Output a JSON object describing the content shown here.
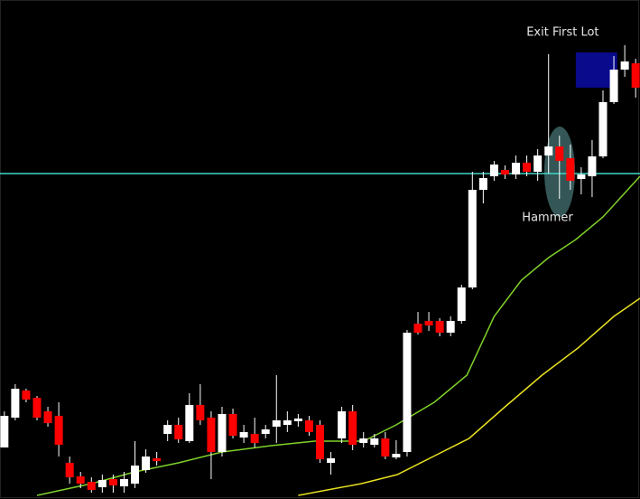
{
  "chart_data": {
    "type": "candlestick",
    "x": [
      1,
      2,
      3,
      4,
      5,
      6,
      7,
      8,
      9,
      10,
      11,
      12,
      13,
      14,
      15,
      16,
      17,
      18,
      19,
      20,
      21,
      22,
      23,
      24,
      25,
      26,
      27,
      28,
      29,
      30,
      31,
      32,
      33,
      34,
      35,
      36,
      37,
      38,
      39,
      40,
      41,
      42,
      43,
      44,
      45,
      46,
      47,
      48,
      49,
      50,
      51,
      52,
      53,
      54,
      55,
      56,
      57,
      58,
      59
    ],
    "open": [
      57,
      90,
      120,
      112,
      97,
      92,
      40,
      25,
      19,
      13,
      22,
      14,
      17,
      32,
      45,
      72,
      82,
      64,
      104,
      90,
      52,
      94,
      68,
      72,
      72,
      80,
      82,
      86,
      87,
      82,
      40,
      67,
      97,
      62,
      60,
      67,
      46,
      52,
      194,
      197,
      197,
      184,
      197,
      234,
      342,
      357,
      364,
      359,
      372,
      362,
      380,
      390,
      377,
      354,
      357,
      379,
      439,
      475,
      482
    ],
    "high": [
      97,
      127,
      122,
      114,
      102,
      107,
      47,
      30,
      24,
      27,
      27,
      30,
      64,
      55,
      52,
      87,
      90,
      117,
      127,
      97,
      102,
      100,
      82,
      90,
      82,
      137,
      97,
      94,
      92,
      87,
      52,
      102,
      104,
      74,
      72,
      74,
      65,
      187,
      207,
      207,
      200,
      202,
      237,
      362,
      362,
      374,
      369,
      380,
      380,
      387,
      492,
      402,
      392,
      367,
      397,
      452,
      490,
      502,
      487
    ],
    "low": [
      57,
      87,
      107,
      87,
      80,
      47,
      17,
      12,
      7,
      7,
      7,
      7,
      12,
      29,
      37,
      64,
      62,
      62,
      82,
      22,
      47,
      67,
      62,
      57,
      67,
      62,
      74,
      80,
      70,
      40,
      27,
      62,
      54,
      57,
      57,
      44,
      44,
      47,
      182,
      186,
      180,
      180,
      194,
      232,
      327,
      352,
      354,
      354,
      357,
      352,
      360,
      332,
      342,
      337,
      334,
      377,
      437,
      467,
      444
    ],
    "close": [
      92,
      122,
      110,
      90,
      84,
      60,
      24,
      17,
      10,
      21,
      15,
      22,
      37,
      47,
      42,
      82,
      66,
      104,
      87,
      52,
      94,
      70,
      74,
      62,
      77,
      87,
      87,
      89,
      74,
      44,
      45,
      97,
      60,
      67,
      67,
      47,
      50,
      184,
      184,
      192,
      184,
      197,
      234,
      342,
      355,
      370,
      359,
      372,
      362,
      380,
      390,
      374,
      352,
      359,
      379,
      439,
      475,
      484,
      455
    ],
    "up_color": "#ffffff",
    "down_color": "#ff0000",
    "xlim": [
      0.6,
      59.4
    ],
    "ylim": [
      0,
      552
    ],
    "lines": [
      {
        "color": "#7fd12a",
        "x": [
          4,
          9,
          13,
          17,
          21,
          25.5,
          29.5,
          34,
          37,
          40.5,
          43.5,
          46,
          48.5,
          51,
          53.5,
          56,
          59.4
        ],
        "values": [
          4,
          17,
          30,
          40,
          52,
          59,
          64,
          64,
          82,
          107,
          137,
          202,
          242,
          267,
          287,
          312,
          357
        ]
      },
      {
        "color": "#e8e020",
        "x": [
          28,
          33.8,
          37.1,
          40.4,
          43.7,
          47,
          50.4,
          53.7,
          57,
          59.4
        ],
        "values": [
          4,
          17,
          27,
          47,
          67,
          102,
          137,
          167,
          202,
          222
        ]
      }
    ],
    "hline": {
      "value": 360,
      "color": "#3fd6c8"
    },
    "zone": {
      "x": [
        53.5,
        57.3
      ],
      "y": [
        455,
        494
      ],
      "color": "#0a0a8c"
    },
    "annotations": [
      {
        "text": "Exit First Lot",
        "x": 52.3,
        "y": 516
      },
      {
        "text": "Hammer",
        "x": 50.9,
        "y": 311
      }
    ]
  }
}
